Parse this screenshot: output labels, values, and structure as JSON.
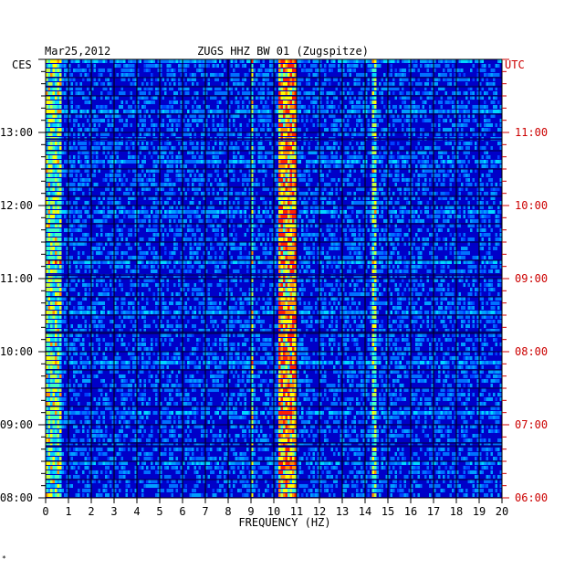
{
  "chart_data": {
    "type": "heatmap",
    "title_left": "Mar25,2012",
    "title_center": "ZUGS HHZ BW 01 (Zugspitze)",
    "left_tz": "CES",
    "right_tz": "UTC",
    "xlabel": "FREQUENCY (HZ)",
    "x_ticks": [
      "0",
      "1",
      "2",
      "3",
      "4",
      "5",
      "6",
      "7",
      "8",
      "9",
      "10",
      "11",
      "12",
      "13",
      "14",
      "15",
      "16",
      "17",
      "18",
      "19",
      "20"
    ],
    "xlim": [
      0,
      20
    ],
    "y_ticks_left": [
      "08:00",
      "09:00",
      "10:00",
      "11:00",
      "12:00",
      "13:00"
    ],
    "y_ticks_right": [
      "06:00",
      "07:00",
      "08:00",
      "09:00",
      "10:00",
      "11:00"
    ],
    "ylim_hours_local": [
      8,
      14
    ],
    "grid": true,
    "colors": {
      "background": "#0000c8",
      "grid": "#000000",
      "right_axis_text": "#cc0000",
      "hot": "#ff3000",
      "warm": "#ffff00",
      "cool": "#00e0ff"
    },
    "features": [
      {
        "name": "strong-band",
        "freq_hz": [
          10.2,
          11.0
        ],
        "intensity": "high"
      },
      {
        "name": "band",
        "freq_hz": [
          9.0,
          9.1
        ],
        "intensity": "medium"
      },
      {
        "name": "band",
        "freq_hz": [
          14.3,
          14.5
        ],
        "intensity": "medium"
      },
      {
        "name": "low-freq-noise",
        "freq_hz": [
          0,
          0.7
        ],
        "intensity": "medium"
      }
    ]
  },
  "footer_mark": "*"
}
